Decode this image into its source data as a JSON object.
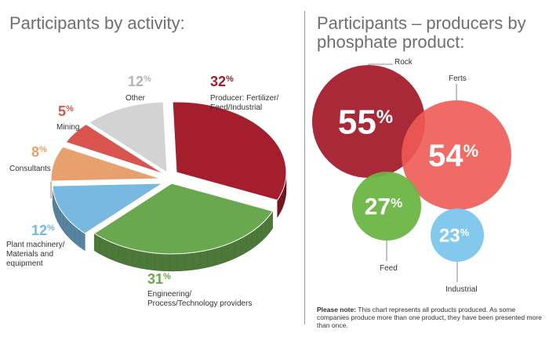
{
  "left": {
    "title": "Participants by activity:",
    "chart_data": {
      "type": "pie",
      "slices": [
        {
          "label": "Producer: Fertilizer/ Feed/Industrial",
          "label_lines": [
            "Producer: Fertilizer/",
            "Feed/Industrial"
          ],
          "value": 32,
          "pct_text": "32",
          "color": "#a51e2d"
        },
        {
          "label": "Engineering/ Process/Technology providers",
          "label_lines": [
            "Engineering/",
            "Process/Technology providers"
          ],
          "value": 31,
          "pct_text": "31",
          "color": "#6aa84f"
        },
        {
          "label": "Plant machinery/ Materials and equipment",
          "label_lines": [
            "Plant machinery/",
            "Materials and",
            "equipment"
          ],
          "value": 12,
          "pct_text": "12",
          "color": "#79b8e0"
        },
        {
          "label": "Consultants",
          "label_lines": [
            "Consultants"
          ],
          "value": 8,
          "pct_text": "8",
          "color": "#e8a06f"
        },
        {
          "label": "Mining",
          "label_lines": [
            "Mining"
          ],
          "value": 5,
          "pct_text": "5",
          "color": "#d9534f"
        },
        {
          "label": "Other",
          "label_lines": [
            "Other"
          ],
          "value": 12,
          "pct_text": "12",
          "color": "#d3d3d3"
        }
      ],
      "unit": "%"
    }
  },
  "right": {
    "title_lines": [
      "Participants – producers by",
      "phosphate product:"
    ],
    "chart_data": {
      "type": "bubble",
      "bubbles": [
        {
          "label": "Rock",
          "value": 55,
          "pct_text": "55",
          "color": "#a51e2d"
        },
        {
          "label": "Ferts",
          "value": 54,
          "pct_text": "54",
          "color": "#ee5a55"
        },
        {
          "label": "Feed",
          "value": 27,
          "pct_text": "27",
          "color": "#6db544"
        },
        {
          "label": "Industrial",
          "value": 23,
          "pct_text": "23",
          "color": "#7cc6ec"
        }
      ],
      "unit": "%"
    },
    "note_label": "Please note:",
    "note_text": "This chart represents all products produced. As some companies produce more than one product, they have been presented more than once."
  }
}
